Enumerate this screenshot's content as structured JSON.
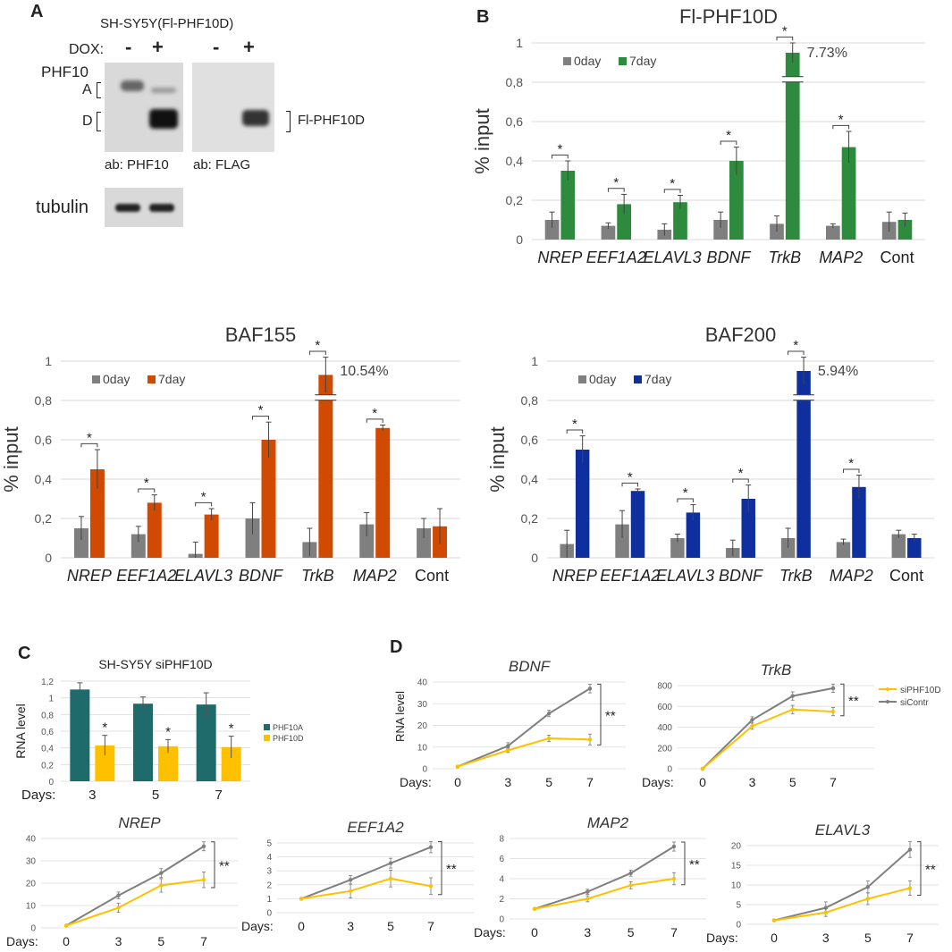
{
  "panels": {
    "a": "A",
    "b": "B",
    "c": "C",
    "d": "D"
  },
  "blot": {
    "title": "SH-SY5Y(Fl-PHF10D)",
    "dox_label": "DOX:",
    "minus": "-",
    "plus": "+",
    "phf10": "PHF10",
    "band_a": "A",
    "band_d": "D",
    "fl_label": "Fl-PHF10D",
    "ab_phf10": "ab: PHF10",
    "ab_flag": "ab: FLAG",
    "tubulin": "tubulin"
  },
  "chart_data": [
    {
      "id": "fl",
      "type": "bar",
      "title": "Fl-PHF10D",
      "ylabel": "% input",
      "ylim": [
        0,
        1
      ],
      "yticks": [
        "0",
        "0,2",
        "0,4",
        "0,6",
        "0,8",
        "1"
      ],
      "categories": [
        "NREP",
        "EEF1A2",
        "ELAVL3",
        "BDNF",
        "TrkB",
        "MAP2",
        "Cont"
      ],
      "series": [
        {
          "name": "0day",
          "color": "#7f7f7f",
          "values": [
            0.1,
            0.07,
            0.05,
            0.1,
            0.08,
            0.07,
            0.09
          ],
          "errors": [
            0.04,
            0.015,
            0.03,
            0.04,
            0.04,
            0.01,
            0.05
          ]
        },
        {
          "name": "7day",
          "color": "#2e8b3e",
          "values": [
            0.35,
            0.18,
            0.19,
            0.4,
            0.95,
            0.47,
            0.1
          ],
          "errors": [
            0.05,
            0.05,
            0.035,
            0.07,
            0.05,
            0.08,
            0.035
          ]
        }
      ],
      "significance": [
        "*",
        "*",
        "*",
        "*",
        "*",
        "*",
        ""
      ],
      "break_annotation": "7.73%"
    },
    {
      "id": "baf155",
      "type": "bar",
      "title": "BAF155",
      "ylabel": "% input",
      "ylim": [
        0,
        1
      ],
      "yticks": [
        "0",
        "0,2",
        "0,4",
        "0,6",
        "0,8",
        "1"
      ],
      "categories": [
        "NREP",
        "EEF1A2",
        "ELAVL3",
        "BDNF",
        "TrkB",
        "MAP2",
        "Cont"
      ],
      "series": [
        {
          "name": "0day",
          "color": "#7f7f7f",
          "values": [
            0.15,
            0.12,
            0.02,
            0.2,
            0.08,
            0.17,
            0.15
          ],
          "errors": [
            0.06,
            0.04,
            0.06,
            0.08,
            0.07,
            0.06,
            0.05
          ]
        },
        {
          "name": "7day",
          "color": "#d04a02",
          "values": [
            0.45,
            0.28,
            0.22,
            0.6,
            0.93,
            0.66,
            0.16
          ],
          "errors": [
            0.1,
            0.04,
            0.03,
            0.09,
            0.09,
            0.015,
            0.09
          ]
        }
      ],
      "significance": [
        "*",
        "*",
        "*",
        "*",
        "*",
        "*",
        ""
      ],
      "break_annotation": "10.54%"
    },
    {
      "id": "baf200",
      "type": "bar",
      "title": "BAF200",
      "ylabel": "% input",
      "ylim": [
        0,
        1
      ],
      "yticks": [
        "0",
        "0,2",
        "0,4",
        "0,6",
        "0,8",
        "1"
      ],
      "categories": [
        "NREP",
        "EEF1A2",
        "ELAVL3",
        "BDNF",
        "TrkB",
        "MAP2",
        "Cont"
      ],
      "series": [
        {
          "name": "0day",
          "color": "#7f7f7f",
          "values": [
            0.07,
            0.17,
            0.1,
            0.05,
            0.1,
            0.08,
            0.12
          ],
          "errors": [
            0.07,
            0.07,
            0.02,
            0.04,
            0.05,
            0.015,
            0.02
          ]
        },
        {
          "name": "7day",
          "color": "#0f2f9e",
          "values": [
            0.55,
            0.34,
            0.23,
            0.3,
            0.95,
            0.36,
            0.1
          ],
          "errors": [
            0.07,
            0.01,
            0.04,
            0.07,
            0.07,
            0.06,
            0.02
          ]
        }
      ],
      "significance": [
        "*",
        "*",
        "*",
        "*",
        "*",
        "*",
        ""
      ],
      "break_annotation": "5.94%"
    },
    {
      "id": "c",
      "type": "bar",
      "title": "SH-SY5Y siPHF10D",
      "ylabel": "RNA level",
      "ylim": [
        0,
        1.2
      ],
      "yticks": [
        "0",
        "0,2",
        "0,4",
        "0,6",
        "0,8",
        "1",
        "1,2"
      ],
      "xprefix": "Days:",
      "categories": [
        "3",
        "5",
        "7"
      ],
      "series": [
        {
          "name": "PHF10A",
          "color": "#1f6b6b",
          "values": [
            1.1,
            0.93,
            0.92
          ],
          "errors": [
            0.08,
            0.08,
            0.14
          ]
        },
        {
          "name": "PHF10D",
          "color": "#ffc000",
          "values": [
            0.43,
            0.42,
            0.41
          ],
          "errors": [
            0.12,
            0.08,
            0.13
          ]
        }
      ],
      "significance": [
        "*",
        "*",
        "*"
      ]
    },
    {
      "id": "bdnf",
      "type": "line",
      "title": "BDNF",
      "ylabel": "RNA level",
      "xprefix": "Days:",
      "x": [
        "0",
        "3",
        "5",
        "7"
      ],
      "ylim": [
        0,
        40
      ],
      "yticks": [
        "0",
        "10",
        "20",
        "30",
        "40"
      ],
      "series": [
        {
          "name": "siContr",
          "color": "#7f7f7f",
          "values": [
            1,
            10.5,
            25.5,
            37
          ],
          "errors": [
            0,
            1.5,
            1.5,
            2
          ]
        },
        {
          "name": "siPHF10D",
          "color": "#ffc000",
          "values": [
            1,
            8.5,
            14,
            13.5
          ],
          "errors": [
            0,
            1,
            1.5,
            2.5
          ]
        }
      ],
      "significance": "**"
    },
    {
      "id": "trkb",
      "type": "line",
      "title": "TrkB",
      "xprefix": "Days:",
      "x": [
        "0",
        "3",
        "5",
        "7"
      ],
      "ylim": [
        0,
        800
      ],
      "yticks": [
        "0",
        "200",
        "400",
        "600",
        "800"
      ],
      "series": [
        {
          "name": "siContr",
          "color": "#7f7f7f",
          "values": [
            0,
            470,
            700,
            775
          ],
          "errors": [
            0,
            30,
            40,
            40
          ]
        },
        {
          "name": "siPHF10D",
          "color": "#ffc000",
          "values": [
            0,
            410,
            570,
            550
          ],
          "errors": [
            0,
            30,
            40,
            40
          ]
        }
      ],
      "significance": "**",
      "legend": [
        "siPHF10D",
        "siContr"
      ]
    },
    {
      "id": "nrep",
      "type": "line",
      "title": "NREP",
      "xprefix": "Days:",
      "x": [
        "0",
        "3",
        "5",
        "7"
      ],
      "ylim": [
        0,
        40
      ],
      "yticks": [
        "0",
        "10",
        "20",
        "30",
        "40"
      ],
      "series": [
        {
          "name": "siContr",
          "color": "#7f7f7f",
          "values": [
            1,
            14.5,
            24.5,
            36.5
          ],
          "errors": [
            0,
            1.5,
            2,
            2
          ]
        },
        {
          "name": "siPHF10D",
          "color": "#ffc000",
          "values": [
            1,
            9,
            19,
            21.5
          ],
          "errors": [
            0,
            2,
            3,
            3.5
          ]
        }
      ],
      "significance": "**"
    },
    {
      "id": "eef1a2",
      "type": "line",
      "title": "EEF1A2",
      "xprefix": "Days:",
      "x": [
        "0",
        "3",
        "5",
        "7"
      ],
      "ylim": [
        0,
        5
      ],
      "yticks": [
        "0",
        "1",
        "2",
        "3",
        "4",
        "5"
      ],
      "series": [
        {
          "name": "siContr",
          "color": "#7f7f7f",
          "values": [
            1,
            2.35,
            3.55,
            4.7
          ],
          "errors": [
            0,
            0.3,
            0.35,
            0.4
          ]
        },
        {
          "name": "siPHF10D",
          "color": "#ffc000",
          "values": [
            1,
            1.55,
            2.45,
            1.9
          ],
          "errors": [
            0,
            0.5,
            0.6,
            0.6
          ]
        }
      ],
      "significance": "**"
    },
    {
      "id": "map2",
      "type": "line",
      "title": "MAP2",
      "xprefix": "Days:",
      "x": [
        "0",
        "3",
        "5",
        "7"
      ],
      "ylim": [
        0,
        8
      ],
      "yticks": [
        "0",
        "2",
        "4",
        "6",
        "8"
      ],
      "series": [
        {
          "name": "siContr",
          "color": "#7f7f7f",
          "values": [
            1,
            2.7,
            4.55,
            7.2
          ],
          "errors": [
            0,
            0.25,
            0.3,
            0.45
          ]
        },
        {
          "name": "siPHF10D",
          "color": "#ffc000",
          "values": [
            1,
            2.0,
            3.35,
            4.0
          ],
          "errors": [
            0,
            0.3,
            0.35,
            0.6
          ]
        }
      ],
      "significance": "**"
    },
    {
      "id": "elavl3",
      "type": "line",
      "title": "ELAVL3",
      "xprefix": "Days:",
      "x": [
        "0",
        "3",
        "5",
        "7"
      ],
      "ylim": [
        0,
        20
      ],
      "yticks": [
        "0",
        "5",
        "10",
        "15",
        "20"
      ],
      "series": [
        {
          "name": "siContr",
          "color": "#7f7f7f",
          "values": [
            1,
            4.2,
            9.5,
            19
          ],
          "errors": [
            0,
            1.5,
            1.5,
            2
          ]
        },
        {
          "name": "siPHF10D",
          "color": "#ffc000",
          "values": [
            1,
            3,
            6.5,
            9.2
          ],
          "errors": [
            0,
            1,
            1.5,
            1.8
          ]
        }
      ],
      "significance": "**"
    }
  ]
}
